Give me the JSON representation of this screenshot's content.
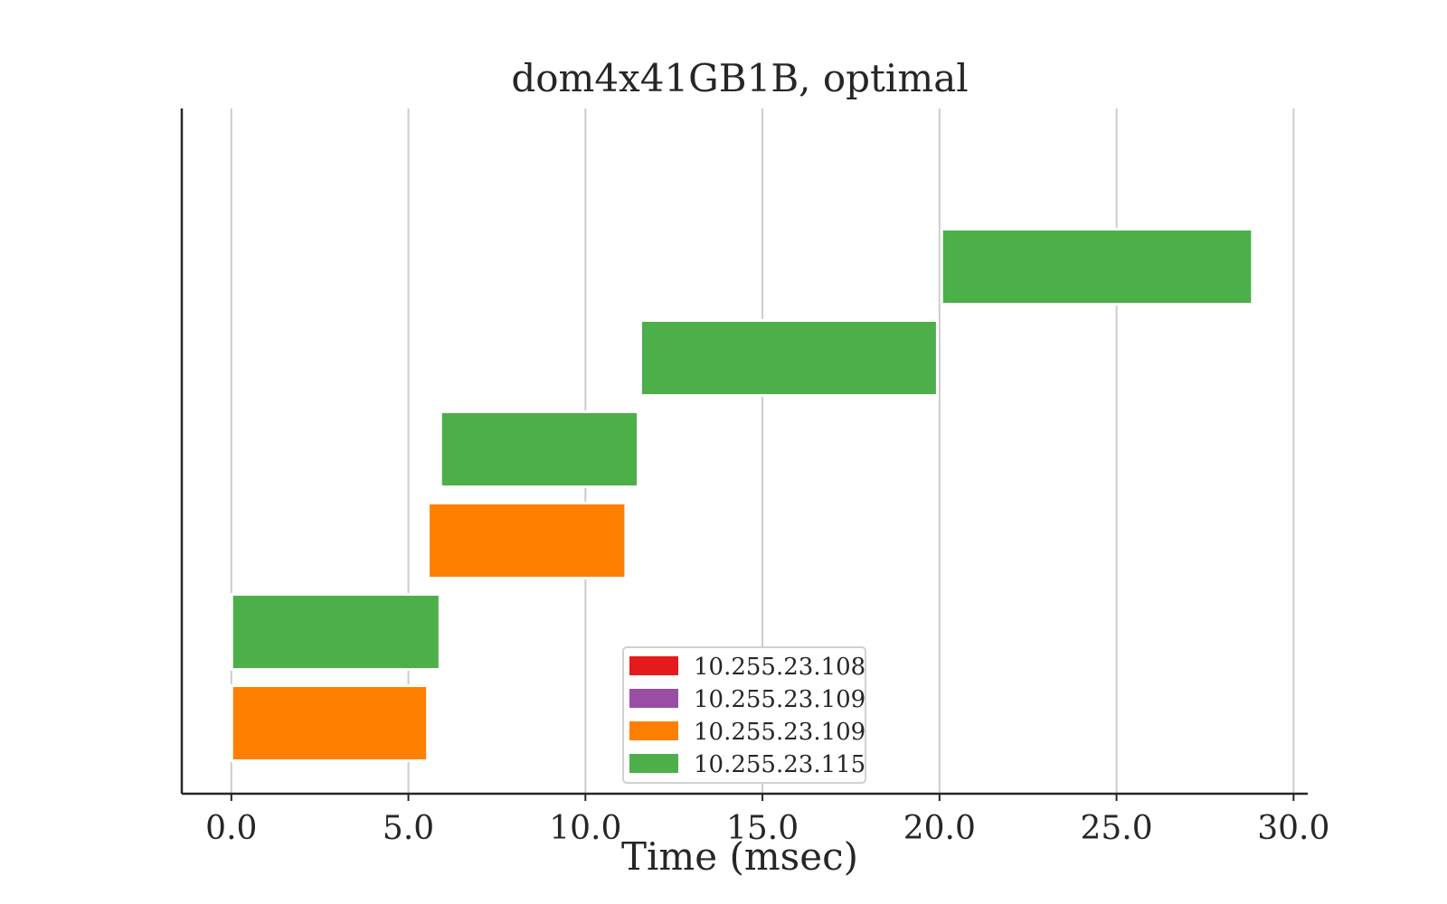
{
  "chart_data": {
    "type": "gantt",
    "title": "dom4x41GB1B, optimal",
    "xlabel": "Time (msec)",
    "ylabel": "",
    "xlim": [
      -1.4,
      30.4
    ],
    "xticks": [
      0,
      5,
      10,
      15,
      20,
      25,
      30
    ],
    "xtick_labels": [
      "0.0",
      "5.0",
      "10.0",
      "15.0",
      "20.0",
      "25.0",
      "30.0"
    ],
    "grid": "vertical",
    "legend_position": "lower-center",
    "legend": [
      {
        "label": "10.255.23.108",
        "color": "#e41a1c"
      },
      {
        "label": "10.255.23.109",
        "color": "#984ea3"
      },
      {
        "label": "10.255.23.109",
        "color": "#ff7f00"
      },
      {
        "label": "10.255.23.115",
        "color": "#4daf4a"
      }
    ],
    "rows": 6,
    "bars": [
      {
        "row": 0,
        "start": 0.05,
        "end": 5.5,
        "color": "#ff7f00"
      },
      {
        "row": 1,
        "start": 0.05,
        "end": 5.85,
        "color": "#4daf4a"
      },
      {
        "row": 2,
        "start": 5.6,
        "end": 11.1,
        "color": "#ff7f00"
      },
      {
        "row": 3,
        "start": 5.95,
        "end": 11.45,
        "color": "#4daf4a"
      },
      {
        "row": 4,
        "start": 11.6,
        "end": 19.9,
        "color": "#4daf4a"
      },
      {
        "row": 5,
        "start": 20.1,
        "end": 28.8,
        "color": "#4daf4a"
      }
    ]
  }
}
